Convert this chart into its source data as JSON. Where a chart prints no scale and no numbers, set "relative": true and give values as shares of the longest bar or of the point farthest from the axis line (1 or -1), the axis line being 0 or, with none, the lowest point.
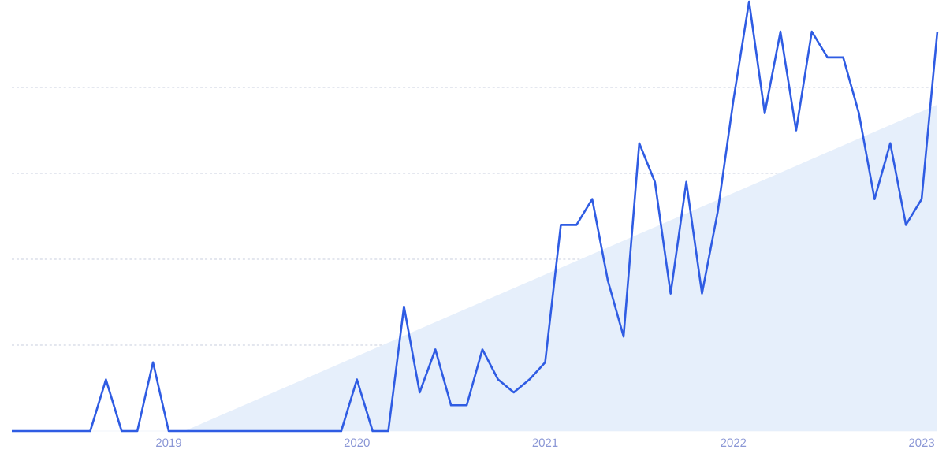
{
  "chart_data": {
    "type": "line",
    "relative": true,
    "grid": "y",
    "x": [
      "2018-03",
      "2018-04",
      "2018-05",
      "2018-06",
      "2018-07",
      "2018-08",
      "2018-09",
      "2018-10",
      "2018-11",
      "2018-12",
      "2019-01",
      "2019-02",
      "2019-03",
      "2019-04",
      "2019-05",
      "2019-06",
      "2019-07",
      "2019-08",
      "2019-09",
      "2019-10",
      "2019-11",
      "2019-12",
      "2020-01",
      "2020-02",
      "2020-03",
      "2020-04",
      "2020-05",
      "2020-06",
      "2020-07",
      "2020-08",
      "2020-09",
      "2020-10",
      "2020-11",
      "2020-12",
      "2021-01",
      "2021-02",
      "2021-03",
      "2021-04",
      "2021-05",
      "2021-06",
      "2021-07",
      "2021-08",
      "2021-09",
      "2021-10",
      "2021-11",
      "2021-12",
      "2022-01",
      "2022-02",
      "2022-03",
      "2022-04",
      "2022-05",
      "2022-06",
      "2022-07",
      "2022-08",
      "2022-09",
      "2022-10",
      "2022-11",
      "2022-12",
      "2023-01",
      "2023-02"
    ],
    "xlim": [
      "2018-03",
      "2023-02"
    ],
    "xticks": [
      "2019",
      "2020",
      "2021",
      "2022",
      "2023"
    ],
    "series": [
      {
        "type": "area",
        "color": "#e6effb",
        "x": [
          "2019-02",
          "2023-02"
        ],
        "values": [
          0,
          0.76
        ]
      },
      {
        "color": "#2f5ce3",
        "values": [
          0,
          0,
          0,
          0,
          0,
          0,
          0.12,
          0,
          0,
          0.16,
          0,
          0,
          0,
          0,
          0,
          0,
          0,
          0,
          0,
          0,
          0,
          0,
          0.12,
          0,
          0,
          0.29,
          0.09,
          0.19,
          0.06,
          0.06,
          0.19,
          0.12,
          0.09,
          0.12,
          0.16,
          0.48,
          0.48,
          0.54,
          0.35,
          0.22,
          0.67,
          0.58,
          0.32,
          0.58,
          0.32,
          0.51,
          0.77,
          1.0,
          0.74,
          0.93,
          0.7,
          0.93,
          0.87,
          0.87,
          0.74,
          0.54,
          0.67,
          0.48,
          0.54,
          0.93
        ]
      }
    ]
  }
}
